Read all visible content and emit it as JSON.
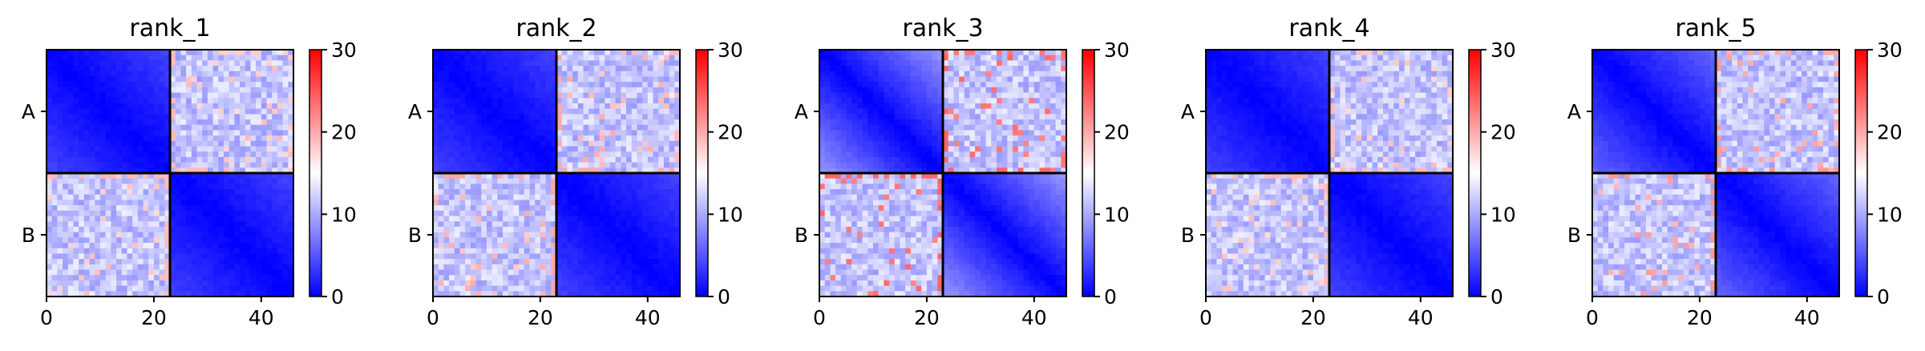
{
  "figure": {
    "background": "#ffffff"
  },
  "chart_data": [
    {
      "type": "heatmap",
      "title": "rank_1",
      "xlabel": "",
      "ylabel": "",
      "x_ticks": [
        0,
        20,
        40
      ],
      "y_tick_labels": [
        "A",
        "B"
      ],
      "matrix_size": 46,
      "block_boundary": 23,
      "diagonal_block_gradient": "low",
      "diagonal_block_value_range": [
        0,
        4
      ],
      "off_diagonal_block_value_range": [
        9,
        14
      ],
      "edge_highlight_value": 19,
      "colorbar": {
        "ticks": [
          0,
          10,
          20,
          30
        ],
        "range": [
          0,
          30
        ],
        "colormap": "bwr",
        "low_color": "#0000ff",
        "mid_color": "#ffffff",
        "high_color": "#ff0000"
      },
      "seed": 11
    },
    {
      "type": "heatmap",
      "title": "rank_2",
      "xlabel": "",
      "ylabel": "",
      "x_ticks": [
        0,
        20,
        40
      ],
      "y_tick_labels": [
        "A",
        "B"
      ],
      "matrix_size": 46,
      "block_boundary": 23,
      "diagonal_block_gradient": "low",
      "diagonal_block_value_range": [
        0,
        4
      ],
      "off_diagonal_block_value_range": [
        9,
        14
      ],
      "edge_highlight_value": 20,
      "colorbar": {
        "ticks": [
          0,
          10,
          20,
          30
        ],
        "range": [
          0,
          30
        ],
        "colormap": "bwr",
        "low_color": "#0000ff",
        "mid_color": "#ffffff",
        "high_color": "#ff0000"
      },
      "seed": 23
    },
    {
      "type": "heatmap",
      "title": "rank_3",
      "xlabel": "",
      "ylabel": "",
      "x_ticks": [
        0,
        20,
        40
      ],
      "y_tick_labels": [
        "A",
        "B"
      ],
      "matrix_size": 46,
      "block_boundary": 23,
      "diagonal_block_gradient": "strong",
      "diagonal_block_value_range": [
        0,
        9
      ],
      "off_diagonal_block_value_range": [
        9,
        14
      ],
      "edge_highlight_value": 24,
      "colorbar": {
        "ticks": [
          0,
          10,
          20,
          30
        ],
        "range": [
          0,
          30
        ],
        "colormap": "bwr",
        "low_color": "#0000ff",
        "mid_color": "#ffffff",
        "high_color": "#ff0000"
      },
      "seed": 37
    },
    {
      "type": "heatmap",
      "title": "rank_4",
      "xlabel": "",
      "ylabel": "",
      "x_ticks": [
        0,
        20,
        40
      ],
      "y_tick_labels": [
        "A",
        "B"
      ],
      "matrix_size": 46,
      "block_boundary": 23,
      "diagonal_block_gradient": "low",
      "diagonal_block_value_range": [
        0,
        4
      ],
      "off_diagonal_block_value_range": [
        9,
        14
      ],
      "edge_highlight_value": 19,
      "colorbar": {
        "ticks": [
          0,
          10,
          20,
          30
        ],
        "range": [
          0,
          30
        ],
        "colormap": "bwr",
        "low_color": "#0000ff",
        "mid_color": "#ffffff",
        "high_color": "#ff0000"
      },
      "seed": 53
    },
    {
      "type": "heatmap",
      "title": "rank_5",
      "xlabel": "",
      "ylabel": "",
      "x_ticks": [
        0,
        20,
        40
      ],
      "y_tick_labels": [
        "A",
        "B"
      ],
      "matrix_size": 46,
      "block_boundary": 23,
      "diagonal_block_gradient": "medium",
      "diagonal_block_value_range": [
        0,
        6
      ],
      "off_diagonal_block_value_range": [
        9,
        14
      ],
      "edge_highlight_value": 21,
      "colorbar": {
        "ticks": [
          0,
          10,
          20,
          30
        ],
        "range": [
          0,
          30
        ],
        "colormap": "bwr",
        "low_color": "#0000ff",
        "mid_color": "#ffffff",
        "high_color": "#ff0000"
      },
      "seed": 71
    }
  ]
}
